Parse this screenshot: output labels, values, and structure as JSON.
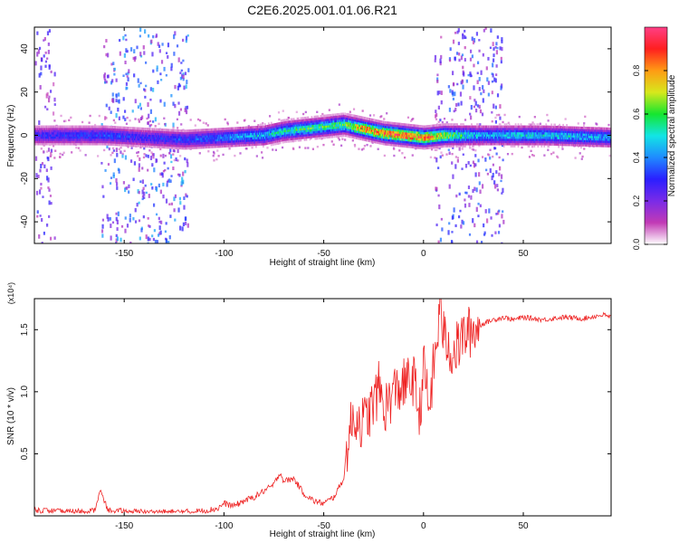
{
  "figure_title": "C2E6.2025.001.01.06.R21",
  "colors": {
    "snr_line": "#ee2222",
    "colormap": [
      "#ffffff",
      "#c23ab5",
      "#7a2be8",
      "#2a1fff",
      "#1f8bff",
      "#12e5e5",
      "#15e62f",
      "#d7e81c",
      "#ff9b14",
      "#ff1f1f",
      "#ff3f86"
    ]
  },
  "chart_data": [
    {
      "type": "heatmap",
      "title": "C2E6.2025.001.01.06.R21",
      "xlabel": "Height of straight line (km)",
      "ylabel": "Frequency (Hz)",
      "xlim": [
        -195,
        94
      ],
      "ylim": [
        -50,
        50
      ],
      "xticks": [
        -150,
        -100,
        -50,
        0,
        50
      ],
      "xtick_labels": [
        "-150",
        "-100",
        "-50",
        "0",
        "50"
      ],
      "yticks": [
        -40,
        -20,
        0,
        20,
        40
      ],
      "ytick_labels": [
        "-40",
        "-20",
        "0",
        "20",
        "40"
      ],
      "colorbar": {
        "label": "Normalized spectral amplitude",
        "range": [
          0,
          1
        ],
        "ticks": [
          0,
          0.2,
          0.4,
          0.6,
          0.8
        ],
        "tick_labels": [
          "0.0",
          "0.2",
          "0.4",
          "0.6",
          "0.8"
        ]
      },
      "ridge": {
        "x": [
          -195,
          -160,
          -140,
          -120,
          -100,
          -80,
          -70,
          -60,
          -50,
          -40,
          -30,
          -20,
          -10,
          0,
          10,
          20,
          30,
          40,
          60,
          94
        ],
        "freq": [
          0,
          0,
          -1,
          -2,
          -1,
          0,
          2,
          3,
          4,
          5,
          3,
          1,
          0,
          -1,
          0,
          0,
          0,
          0,
          0,
          -1
        ],
        "peak_amplitude": [
          0.3,
          0.35,
          0.3,
          0.35,
          0.4,
          0.5,
          0.55,
          0.6,
          0.6,
          0.65,
          0.85,
          0.9,
          0.95,
          0.9,
          0.75,
          0.55,
          0.45,
          0.5,
          0.5,
          0.45
        ]
      },
      "scatter_regions": [
        {
          "x_range": [
            -195,
            -185
          ],
          "level": 0.25
        },
        {
          "x_range": [
            -162,
            -118
          ],
          "level": 0.35
        },
        {
          "x_range": [
            5,
            9
          ],
          "level": 0.3
        },
        {
          "x_range": [
            12,
            40
          ],
          "level": 0.3
        }
      ]
    },
    {
      "type": "line",
      "xlabel": "Height of straight line (km)",
      "ylabel": "SNR (10 * v/v)",
      "y_multiplier": "(x10⁴)",
      "xlim": [
        -195,
        94
      ],
      "ylim": [
        0,
        1.75
      ],
      "xticks": [
        -150,
        -100,
        -50,
        0,
        50
      ],
      "xtick_labels": [
        "-150",
        "-100",
        "-50",
        "0",
        "50"
      ],
      "yticks": [
        0.5,
        1.0,
        1.5
      ],
      "ytick_labels": [
        "0.5",
        "1.0",
        "1.5"
      ],
      "series": [
        {
          "name": "SNR",
          "x": [
            -195,
            -180,
            -165,
            -162,
            -158,
            -140,
            -120,
            -110,
            -103,
            -100,
            -95,
            -90,
            -85,
            -80,
            -75,
            -72,
            -70,
            -65,
            -60,
            -55,
            -50,
            -45,
            -40,
            -38,
            -35,
            -30,
            -25,
            -22,
            -20,
            -15,
            -10,
            -5,
            -2,
            0,
            3,
            5,
            7,
            8,
            10,
            15,
            20,
            25,
            30,
            35,
            40,
            45,
            50,
            60,
            70,
            80,
            90,
            94
          ],
          "values": [
            0.05,
            0.03,
            0.04,
            0.2,
            0.04,
            0.03,
            0.03,
            0.04,
            0.06,
            0.1,
            0.08,
            0.12,
            0.15,
            0.2,
            0.25,
            0.35,
            0.28,
            0.3,
            0.18,
            0.12,
            0.1,
            0.15,
            0.3,
            0.6,
            0.8,
            0.75,
            0.9,
            1.05,
            0.85,
            1.0,
            1.05,
            1.1,
            0.8,
            1.2,
            0.85,
            1.2,
            1.4,
            1.75,
            1.45,
            1.3,
            1.45,
            1.5,
            1.55,
            1.58,
            1.6,
            1.58,
            1.6,
            1.58,
            1.6,
            1.59,
            1.62,
            1.6
          ]
        }
      ]
    }
  ]
}
